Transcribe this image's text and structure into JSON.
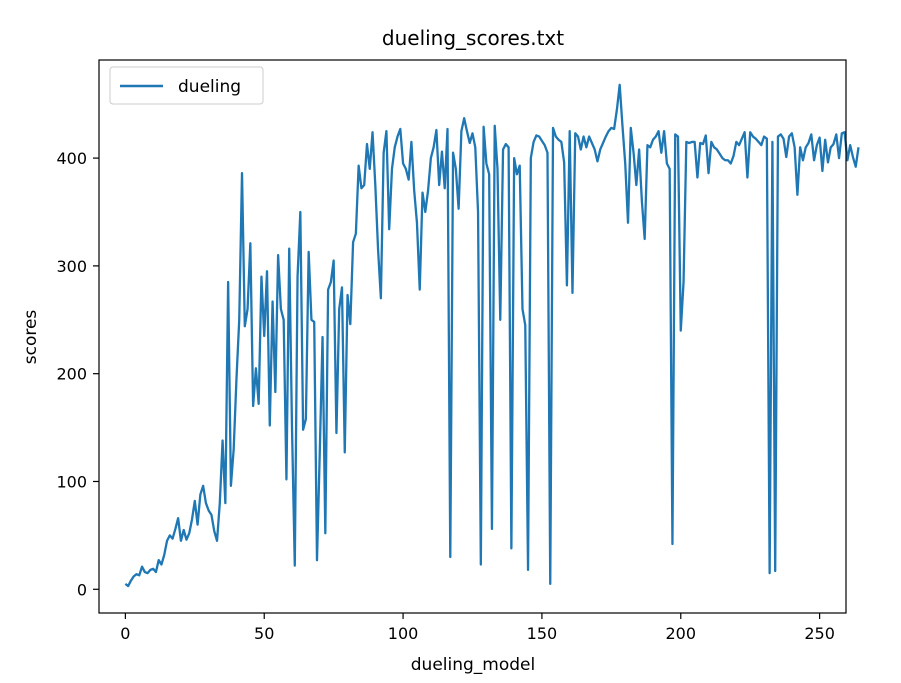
{
  "chart_data": {
    "type": "line",
    "title": "dueling_scores.txt",
    "xlabel": "dueling_model",
    "ylabel": "scores",
    "xlim": [
      -9.5,
      259.5
    ],
    "ylim": [
      -22,
      491
    ],
    "xticks": [
      0,
      50,
      100,
      150,
      200,
      250
    ],
    "yticks": [
      0,
      100,
      200,
      300,
      400
    ],
    "grid": false,
    "legend_position": "top-left",
    "series": [
      {
        "name": "dueling",
        "color": "#1f77b4",
        "values": [
          5,
          3,
          8,
          12,
          14,
          13,
          21,
          16,
          15,
          18,
          19,
          16,
          27,
          23,
          32,
          45,
          50,
          47,
          56,
          66,
          45,
          55,
          46,
          52,
          65,
          82,
          60,
          88,
          96,
          80,
          73,
          69,
          54,
          45,
          80,
          138,
          80,
          285,
          96,
          130,
          195,
          250,
          386,
          244,
          260,
          321,
          170,
          205,
          172,
          290,
          235,
          295,
          152,
          267,
          183,
          310,
          260,
          250,
          102,
          316,
          150,
          22,
          290,
          350,
          148,
          158,
          313,
          250,
          248,
          27,
          127,
          234,
          52,
          278,
          285,
          305,
          145,
          260,
          280,
          127,
          273,
          246,
          322,
          330,
          393,
          372,
          375,
          413,
          390,
          424,
          375,
          315,
          270,
          405,
          425,
          334,
          390,
          410,
          420,
          427,
          395,
          390,
          380,
          415,
          370,
          340,
          278,
          368,
          350,
          370,
          400,
          410,
          426,
          375,
          406,
          372,
          427,
          30,
          405,
          390,
          353,
          425,
          437,
          425,
          414,
          423,
          410,
          350,
          23,
          429,
          395,
          385,
          56,
          430,
          390,
          250,
          408,
          413,
          410,
          38,
          400,
          385,
          393,
          260,
          245,
          18,
          400,
          415,
          421,
          420,
          416,
          412,
          405,
          5,
          428,
          420,
          417,
          415,
          396,
          282,
          425,
          275,
          423,
          420,
          408,
          420,
          410,
          420,
          414,
          408,
          397,
          408,
          414,
          420,
          425,
          428,
          427,
          445,
          468,
          430,
          395,
          340,
          428,
          405,
          375,
          408,
          360,
          325,
          412,
          410,
          417,
          420,
          425,
          405,
          425,
          395,
          390,
          42,
          422,
          420,
          240,
          285,
          415,
          414,
          415,
          415,
          382,
          414,
          413,
          421,
          386,
          415,
          410,
          408,
          404,
          400,
          398,
          398,
          395,
          402,
          415,
          412,
          418,
          424,
          382,
          424,
          420,
          418,
          415,
          412,
          420,
          418,
          15,
          415,
          17,
          420,
          422,
          418,
          401,
          420,
          423,
          410,
          366,
          410,
          398,
          410,
          414,
          422,
          398,
          412,
          419,
          388,
          417,
          396,
          410,
          413,
          422,
          400,
          423,
          424,
          398,
          412,
          401,
          392,
          410
        ],
        "x_start": 0,
        "x_step": 1
      }
    ]
  }
}
